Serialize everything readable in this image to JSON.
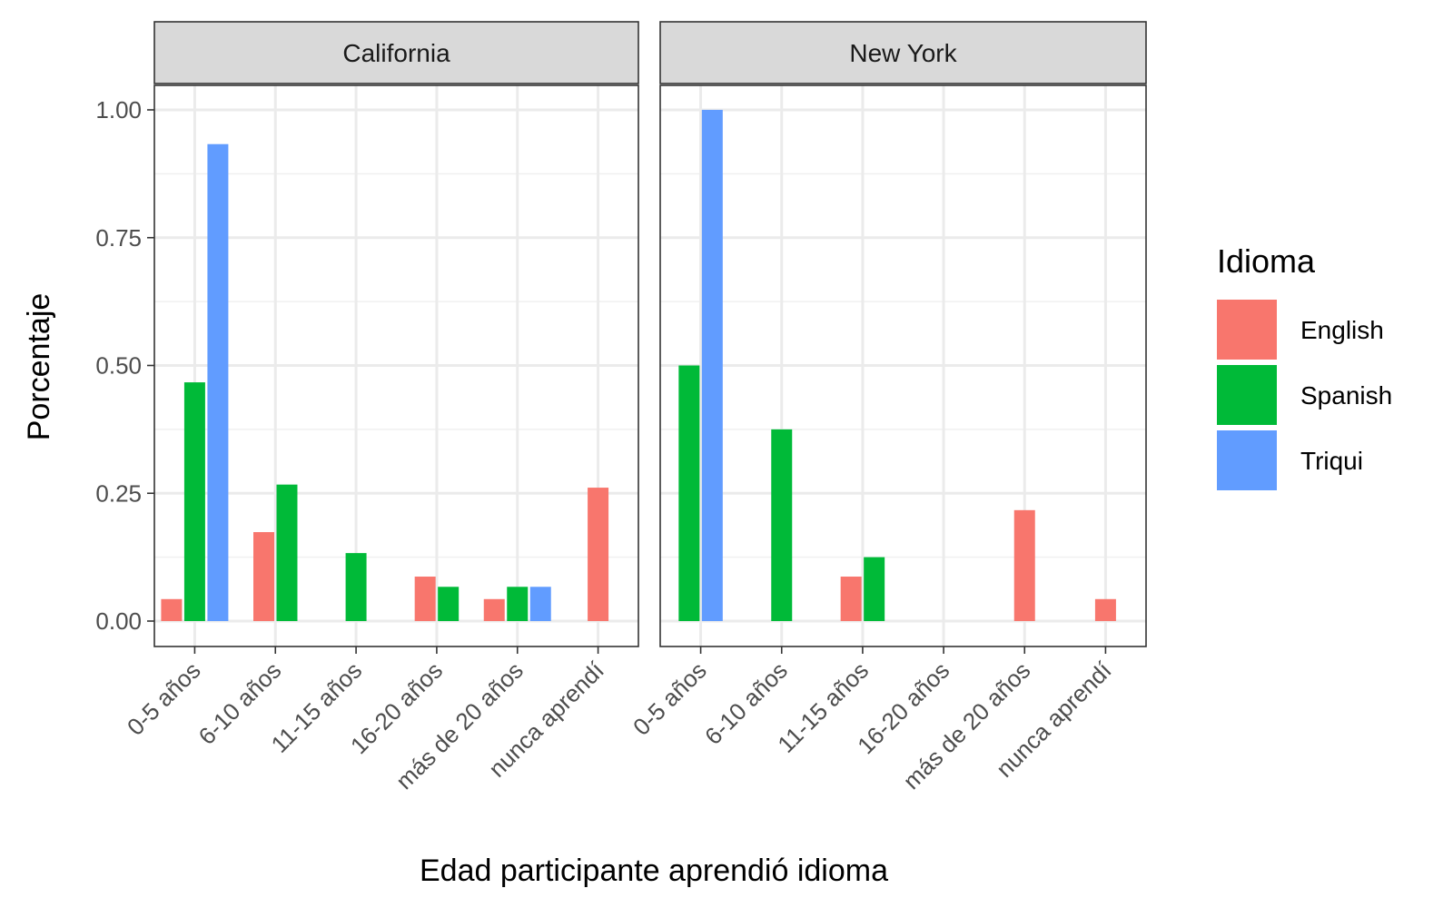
{
  "chart_data": {
    "type": "bar",
    "title": "",
    "xlabel": "Edad participante aprendió idioma",
    "ylabel": "Porcentaje",
    "ylim": [
      0,
      1.05
    ],
    "yticks": [
      "0.00",
      "0.25",
      "0.50",
      "0.75",
      "1.00"
    ],
    "ytick_values": [
      0,
      0.25,
      0.5,
      0.75,
      1.0
    ],
    "grid": true,
    "legend": {
      "title": "Idioma",
      "placement": "right",
      "entries": [
        "English",
        "Spanish",
        "Triqui"
      ]
    },
    "colors": {
      "English": "#F8766D",
      "Spanish": "#00BA38",
      "Triqui": "#619CFF"
    },
    "categories": [
      "0-5 años",
      "6-10 años",
      "11-15 años",
      "16-20 años",
      "más de 20 años",
      "nunca aprendí"
    ],
    "facets": [
      {
        "label": "California",
        "series": [
          {
            "name": "English",
            "values": [
              0.043,
              0.174,
              null,
              0.087,
              0.043,
              0.261
            ]
          },
          {
            "name": "Spanish",
            "values": [
              0.467,
              0.267,
              0.133,
              0.067,
              0.067,
              null
            ]
          },
          {
            "name": "Triqui",
            "values": [
              0.933,
              null,
              null,
              null,
              0.067,
              null
            ]
          }
        ]
      },
      {
        "label": "New York",
        "series": [
          {
            "name": "English",
            "values": [
              null,
              null,
              0.087,
              null,
              0.217,
              0.043
            ]
          },
          {
            "name": "Spanish",
            "values": [
              0.5,
              0.375,
              0.125,
              null,
              null,
              null
            ]
          },
          {
            "name": "Triqui",
            "values": [
              1.0,
              null,
              null,
              null,
              null,
              null
            ]
          }
        ]
      }
    ]
  }
}
